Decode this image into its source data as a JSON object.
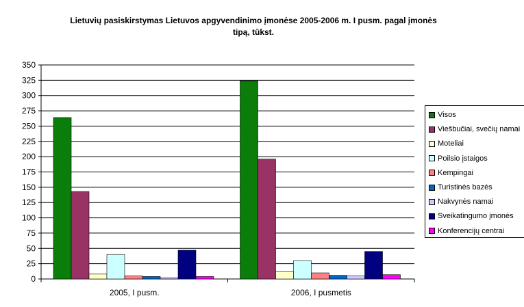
{
  "chart_data": {
    "type": "bar",
    "title": "Lietuvių pasiskirstymas Lietuvos apgyvendinimo įmonėse 2005-2006 m. I pusm.  pagal įmonės tipą, tūkst.",
    "title_lines": [
      "Lietuvių pasiskirstymas Lietuvos apgyvendinimo įmonėse 2005-2006 m. I pusm.  pagal įmonės",
      "tipą, tūkst."
    ],
    "xlabel": "",
    "ylabel": "",
    "categories": [
      "2005, I pusm.",
      "2006, I pusmetis"
    ],
    "ylim": [
      0,
      350
    ],
    "yticks": [
      0,
      25,
      50,
      75,
      100,
      125,
      150,
      175,
      200,
      225,
      250,
      275,
      300,
      325,
      350
    ],
    "grid": true,
    "legend_position": "right",
    "series": [
      {
        "name": "Visos",
        "color": "#0a7d0a",
        "values": [
          264,
          324
        ]
      },
      {
        "name": "Viešbučiai, svečių namai",
        "color": "#993366",
        "values": [
          143,
          196
        ]
      },
      {
        "name": "Moteliai",
        "color": "#ffffcc",
        "values": [
          8,
          12
        ]
      },
      {
        "name": "Poilsio įstaigos",
        "color": "#ccffff",
        "values": [
          40,
          30
        ]
      },
      {
        "name": "Kempingai",
        "color": "#ff8080",
        "values": [
          5,
          10
        ]
      },
      {
        "name": "Turistinės bazės",
        "color": "#0066cc",
        "values": [
          4,
          6
        ]
      },
      {
        "name": "Nakvynės namai",
        "color": "#ccccff",
        "values": [
          2,
          5
        ]
      },
      {
        "name": "Sveikatingumo įmonės",
        "color": "#000080",
        "values": [
          47,
          45
        ]
      },
      {
        "name": "Konferencijų centrai",
        "color": "#ff00ff",
        "values": [
          4,
          7
        ]
      }
    ]
  }
}
